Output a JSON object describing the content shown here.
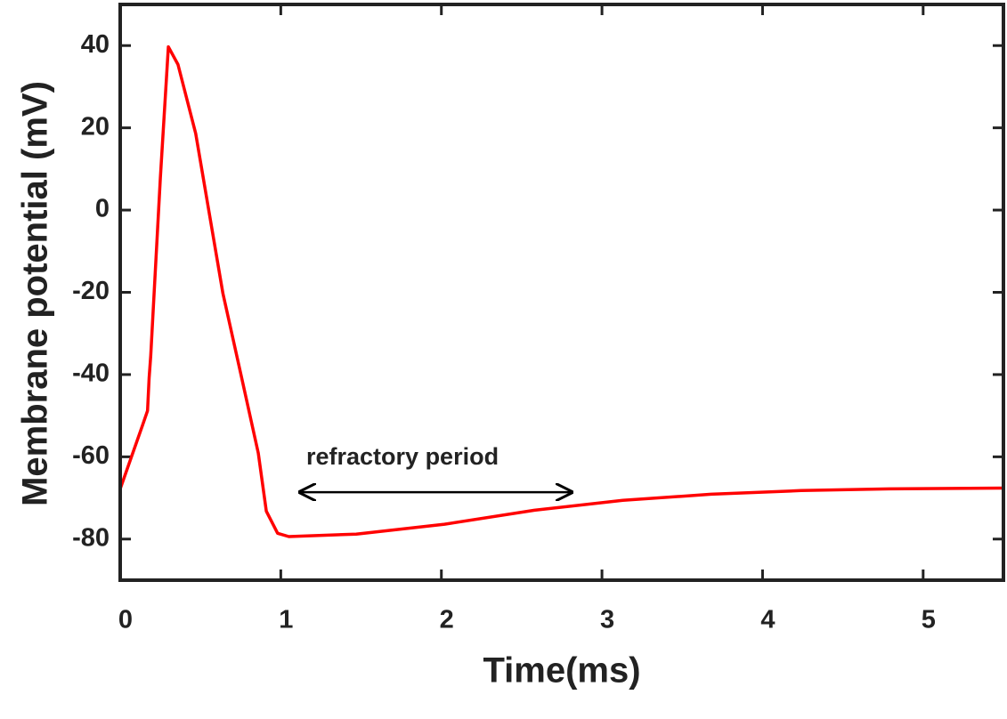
{
  "chart_data": {
    "type": "line",
    "xlabel": "Time(ms)",
    "ylabel": "Membrane potential (mV)",
    "x": [
      0,
      0.14,
      0.17,
      0.18,
      0.19,
      0.25,
      0.3,
      0.36,
      0.47,
      0.64,
      0.75,
      0.86,
      0.91,
      0.98,
      1.05,
      1.47,
      2.02,
      2.58,
      3.13,
      3.68,
      4.24,
      4.79,
      5.49
    ],
    "series": [
      {
        "color": "#ff0000",
        "values": [
          -67.8,
          -52.2,
          -48.8,
          -40.8,
          -35.4,
          7.8,
          39.7,
          35.4,
          18.6,
          -20.3,
          -39.7,
          -59.1,
          -73.2,
          -78.6,
          -79.4,
          -78.8,
          -76.4,
          -73.0,
          -70.6,
          -69.1,
          -68.2,
          -67.8,
          -67.6
        ]
      }
    ],
    "xlim": [
      0,
      5.5
    ],
    "ylim": [
      -90,
      50
    ],
    "xticks": [
      0,
      1,
      2,
      3,
      4,
      5
    ],
    "yticks": [
      -80,
      -60,
      -40,
      -20,
      0,
      20,
      40
    ],
    "annotation": {
      "text": "refractory period",
      "x_start": 1.12,
      "x_end": 2.81,
      "y": -68.6
    }
  }
}
